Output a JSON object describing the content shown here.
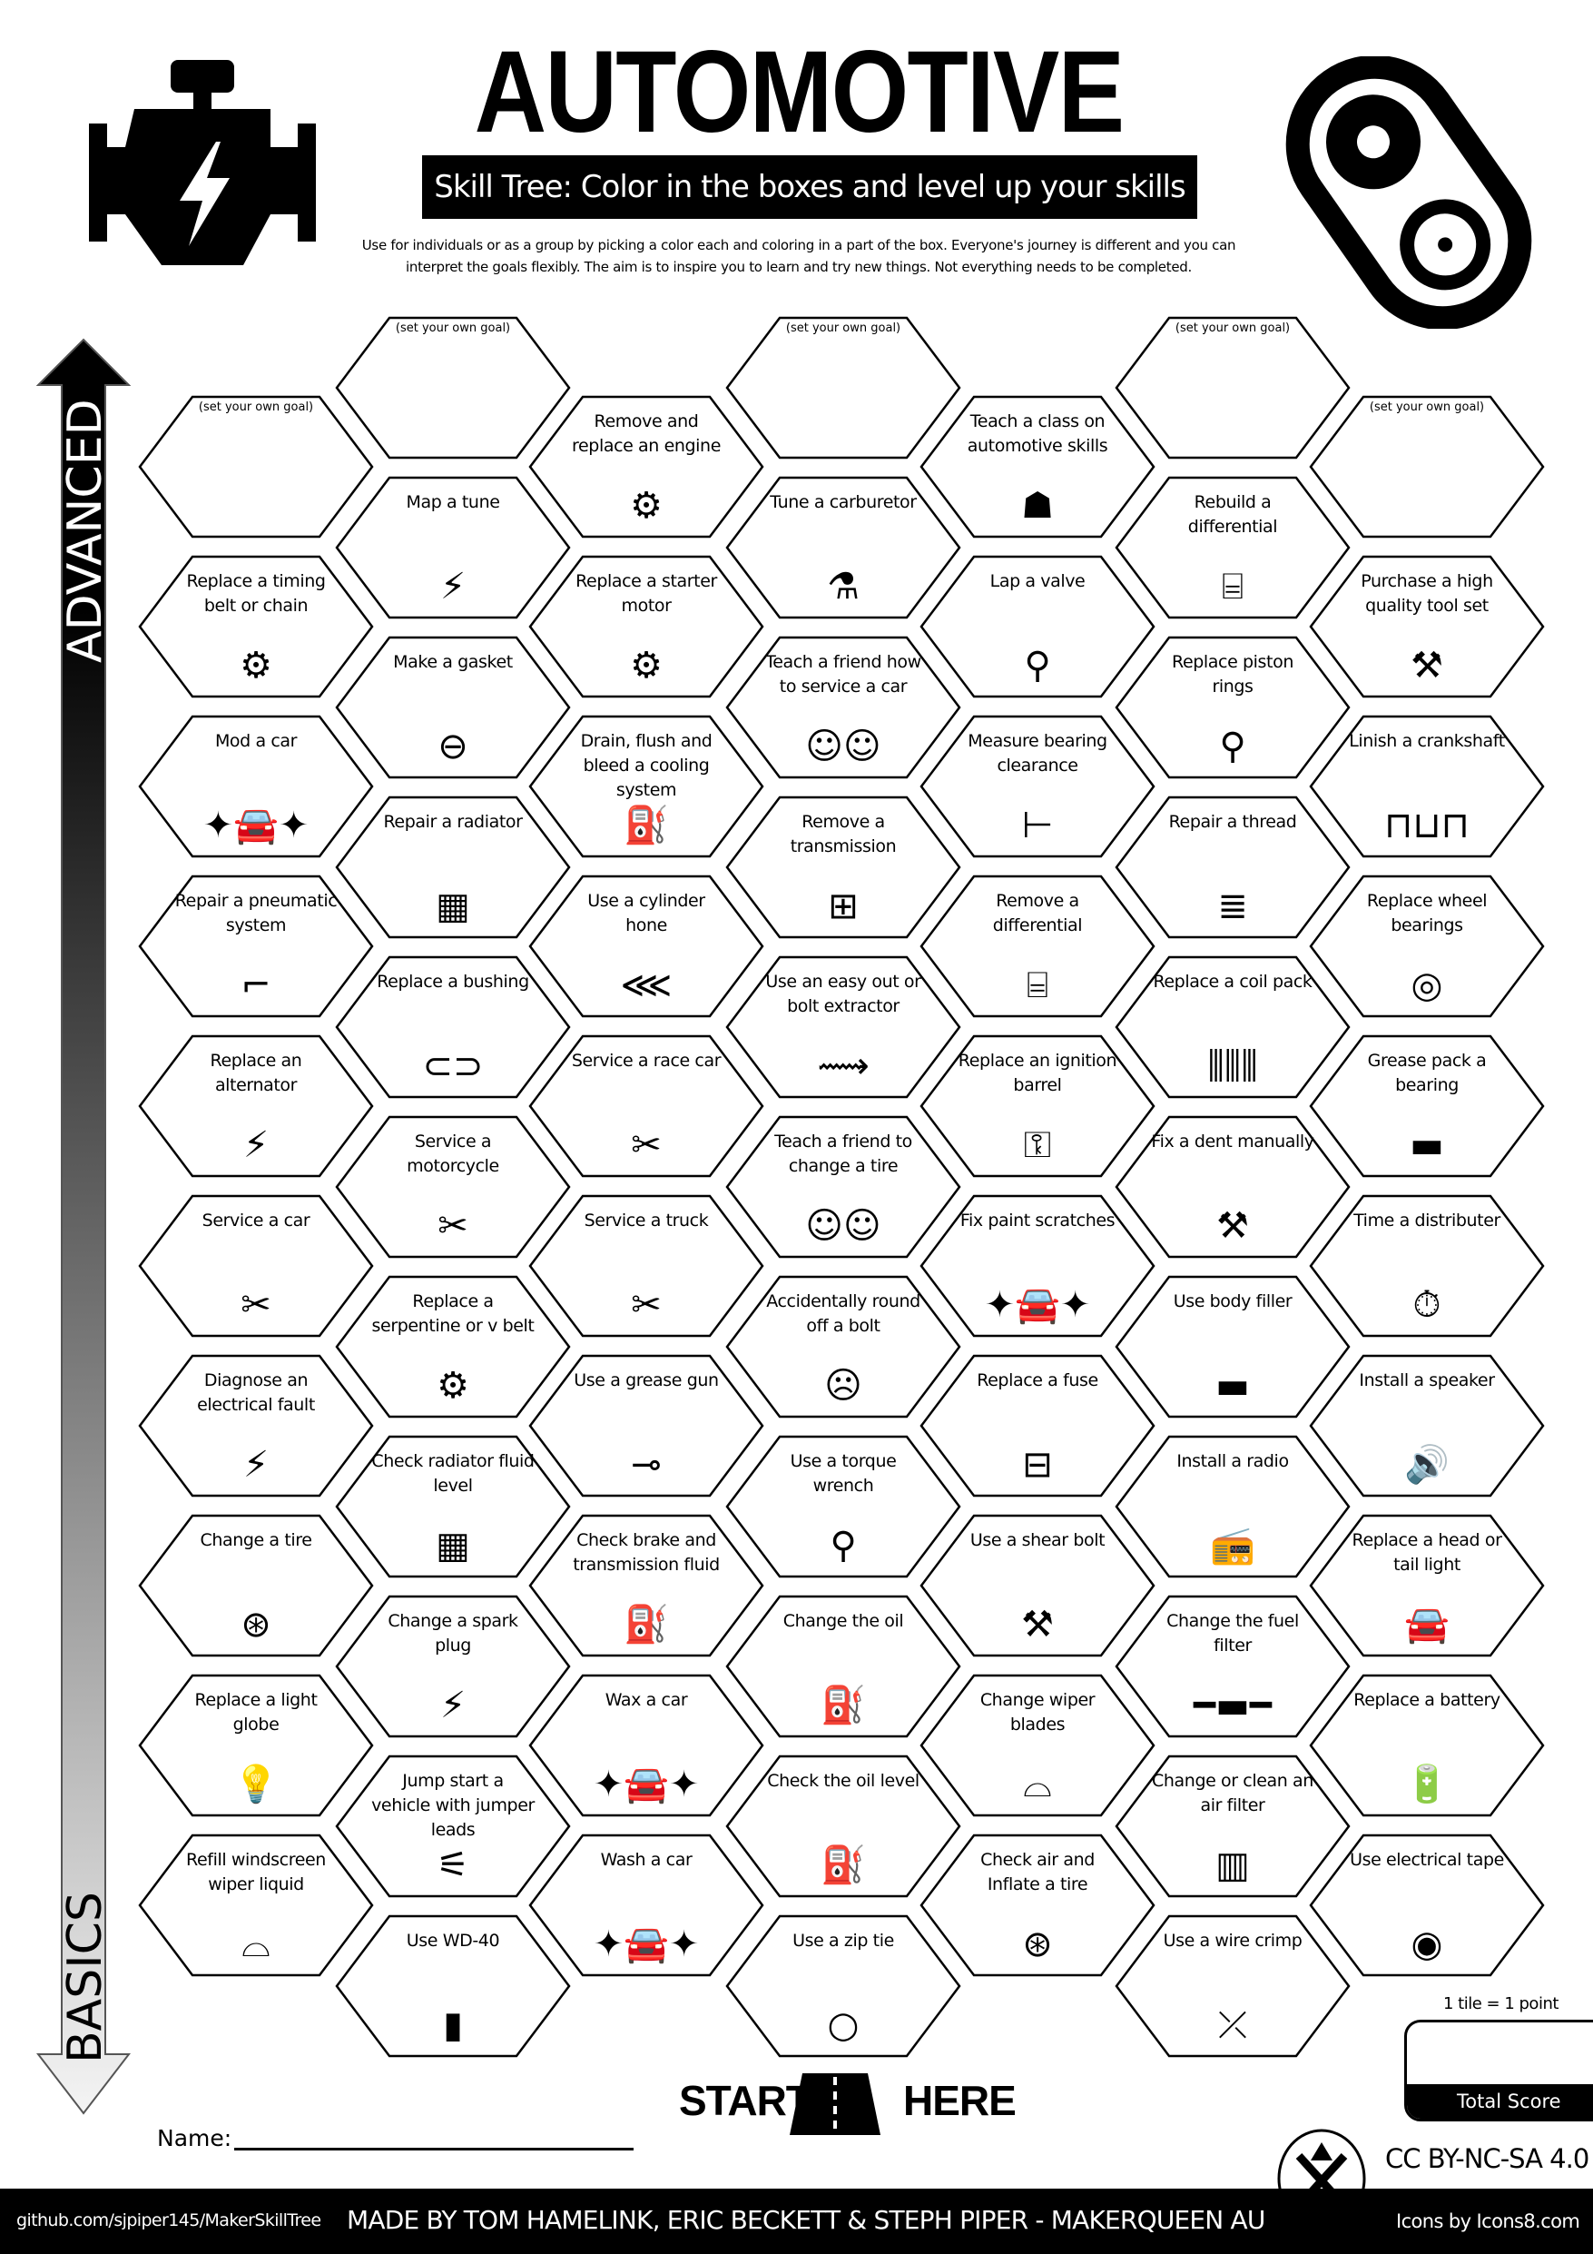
{
  "header": {
    "title": "AUTOMOTIVE",
    "subtitle": "Skill Tree:  Color in the boxes and level up your skills",
    "description_line1": "Use for individuals or as a group by picking a color each and coloring in a part of the box.  Everyone's journey is different and you can",
    "description_line2": "interpret the goals flexibly.  The aim is to inspire you to learn and try new things. Not everything needs to be completed.",
    "left_icon": "engine-warning-icon",
    "right_icon": "timing-belt-icon"
  },
  "axis": {
    "top_label": "ADVANCED",
    "bottom_label": "BASICS"
  },
  "goal_label": "(set your own goal)",
  "columns": [
    {
      "tiles": [
        {
          "goal": true
        },
        {
          "label": "Replace a timing belt or chain",
          "icon": "timing-belt"
        },
        {
          "label": "Mod a car",
          "icon": "sparkle-car"
        },
        {
          "label": "Repair a pneumatic system",
          "icon": "pipe"
        },
        {
          "label": "Replace an alternator",
          "icon": "alternator"
        },
        {
          "label": "Service a car",
          "icon": "tools"
        },
        {
          "label": "Diagnose an electrical fault",
          "icon": "lightning"
        },
        {
          "label": "Change a tire",
          "icon": "wheel"
        },
        {
          "label": "Replace a light globe",
          "icon": "light-bulb"
        },
        {
          "label": "Refill windscreen wiper liquid",
          "icon": "windscreen"
        }
      ]
    },
    {
      "tiles": [
        {
          "goal": true
        },
        {
          "label": "Map a tune",
          "icon": "lightning"
        },
        {
          "label": "Make a gasket",
          "icon": "gasket"
        },
        {
          "label": "Repair a radiator",
          "icon": "radiator"
        },
        {
          "label": "Replace a bushing",
          "icon": "bushing"
        },
        {
          "label": "Service a motorcycle",
          "icon": "tools"
        },
        {
          "label": "Replace a serpentine or v belt",
          "icon": "timing-belt"
        },
        {
          "label": "Check radiator fluid level",
          "icon": "radiator"
        },
        {
          "label": "Change a spark plug",
          "icon": "lightning"
        },
        {
          "label": "Jump start a vehicle with jumper leads",
          "icon": "jumper-cables"
        },
        {
          "label": "Use WD-40",
          "icon": "spray-can"
        }
      ]
    },
    {
      "tiles": [
        {
          "label": "Remove and replace an engine",
          "icon": "engine"
        },
        {
          "label": "Replace a starter motor",
          "icon": "engine"
        },
        {
          "label": "Drain, flush and bleed a cooling system",
          "icon": "oil-can"
        },
        {
          "label": "Use a cylinder hone",
          "icon": "hone"
        },
        {
          "label": "Service a race car",
          "icon": "tools"
        },
        {
          "label": "Service a truck",
          "icon": "tools"
        },
        {
          "label": "Use a grease gun",
          "icon": "grease-gun"
        },
        {
          "label": "Check brake and transmission fluid",
          "icon": "oil-can"
        },
        {
          "label": "Wax a car",
          "icon": "sparkle-car"
        },
        {
          "label": "Wash a car",
          "icon": "sparkle-car"
        }
      ]
    },
    {
      "tiles": [
        {
          "goal": true
        },
        {
          "label": "Tune a carburetor",
          "icon": "carburetor"
        },
        {
          "label": "Teach a friend how to service a car",
          "icon": "teach-friend"
        },
        {
          "label": "Remove a transmission",
          "icon": "gearbox"
        },
        {
          "label": "Use an easy out or bolt extractor",
          "icon": "drill-bit"
        },
        {
          "label": "Teach a friend to change a tire",
          "icon": "teach-friend"
        },
        {
          "label": "Accidentally round off a bolt",
          "icon": "facepalm"
        },
        {
          "label": "Use a torque wrench",
          "icon": "torque-wrench"
        },
        {
          "label": "Change the oil",
          "icon": "oil-can"
        },
        {
          "label": "Check the oil level",
          "icon": "oil-can"
        },
        {
          "label": "Use a zip tie",
          "icon": "zip-tie"
        }
      ]
    },
    {
      "tiles": [
        {
          "label": "Teach a class on automotive skills",
          "icon": "teacher"
        },
        {
          "label": "Lap a valve",
          "icon": "piston"
        },
        {
          "label": "Measure bearing clearance",
          "icon": "caliper"
        },
        {
          "label": "Remove a differential",
          "icon": "axle"
        },
        {
          "label": "Replace an ignition barrel",
          "icon": "ignition-key"
        },
        {
          "label": "Fix paint scratches",
          "icon": "sparkle-car"
        },
        {
          "label": "Replace a fuse",
          "icon": "fuse"
        },
        {
          "label": "Use a shear bolt",
          "icon": "hammer"
        },
        {
          "label": "Change wiper blades",
          "icon": "windscreen"
        },
        {
          "label": "Check air and Inflate a tire",
          "icon": "wheel"
        }
      ]
    },
    {
      "tiles": [
        {
          "goal": true
        },
        {
          "label": "Rebuild a differential",
          "icon": "axle"
        },
        {
          "label": "Replace piston rings",
          "icon": "piston"
        },
        {
          "label": "Repair a thread",
          "icon": "thread"
        },
        {
          "label": "Replace a coil pack",
          "icon": "coil-pack"
        },
        {
          "label": "Fix a dent manually",
          "icon": "dent-hammer"
        },
        {
          "label": "Use body filler",
          "icon": "filler-tub"
        },
        {
          "label": "Install a radio",
          "icon": "radio"
        },
        {
          "label": "Change the fuel filter",
          "icon": "fuel-filter"
        },
        {
          "label": "Change or clean an air filter",
          "icon": "air-filter"
        },
        {
          "label": "Use a wire crimp",
          "icon": "crimper"
        }
      ]
    },
    {
      "tiles": [
        {
          "goal": true
        },
        {
          "label": "Purchase a high quality tool set",
          "icon": "toolbox"
        },
        {
          "label": "Linish a crankshaft",
          "icon": "crankshaft"
        },
        {
          "label": "Replace wheel bearings",
          "icon": "bearing"
        },
        {
          "label": "Grease pack a bearing",
          "icon": "filler-tub"
        },
        {
          "label": "Time a distributer",
          "icon": "stopwatch"
        },
        {
          "label": "Install a speaker",
          "icon": "speaker"
        },
        {
          "label": "Replace a head or tail light",
          "icon": "car"
        },
        {
          "label": "Replace a battery",
          "icon": "battery"
        },
        {
          "label": "Use electrical tape",
          "icon": "tape"
        }
      ]
    }
  ],
  "score": {
    "rule": "1 tile = 1 point",
    "label": "Total Score"
  },
  "start": {
    "left": "START",
    "right": "HERE",
    "icon": "road-icon"
  },
  "name_label": "Name:",
  "license": "CC BY-NC-SA 4.0",
  "footer": {
    "url": "github.com/sjpiper145/MakerSkillTree",
    "credits": "MADE BY TOM HAMELINK, ERIC BECKETT & STEPH PIPER  -  MAKERQUEEN AU",
    "icons_credit": "Icons by Icons8.com",
    "logo": "makerqueen-logo"
  }
}
